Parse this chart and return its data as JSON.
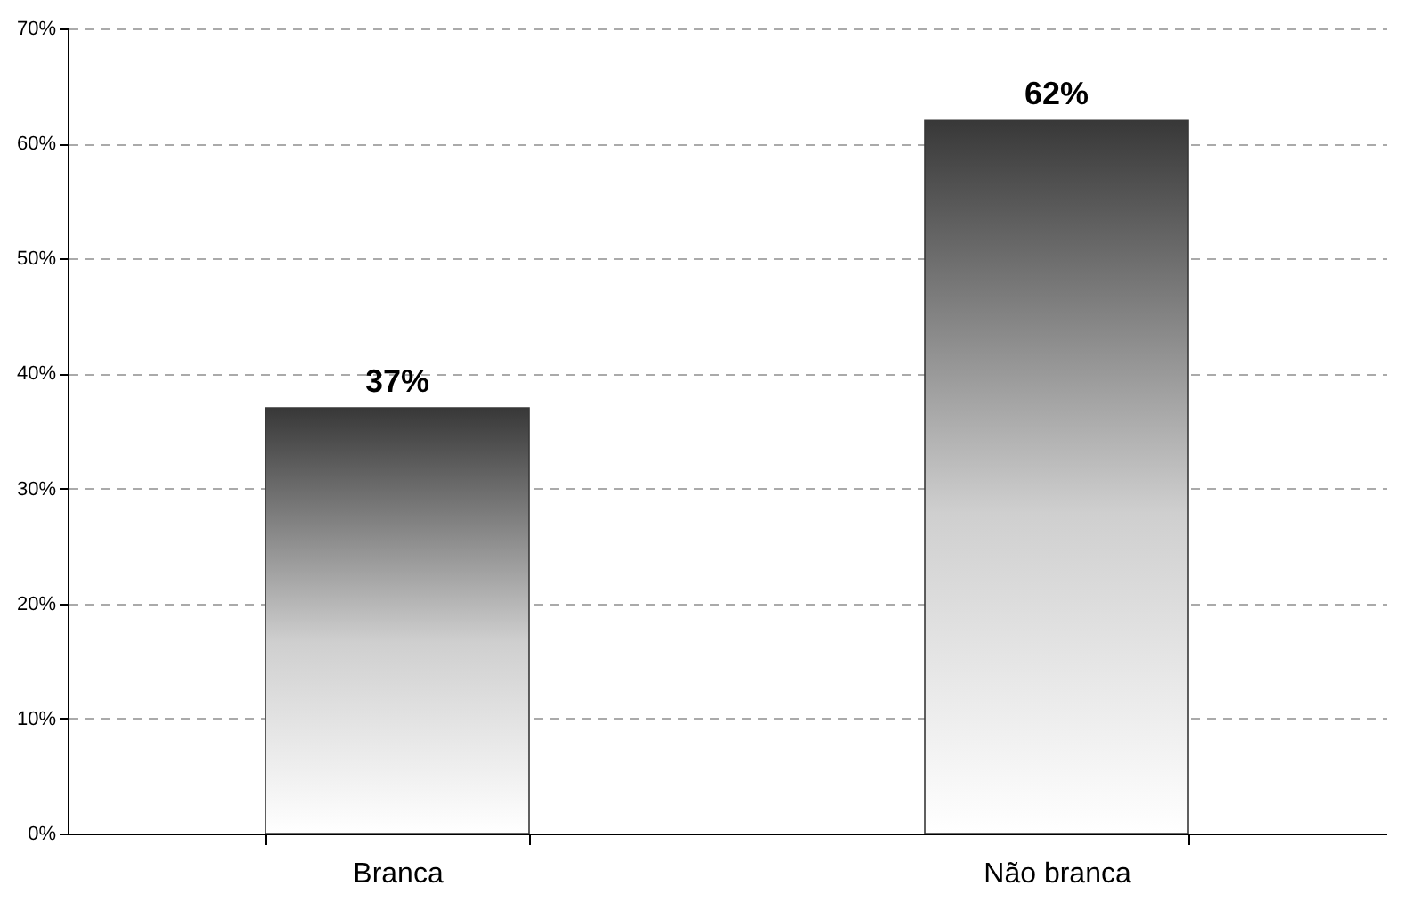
{
  "chart_data": {
    "type": "bar",
    "categories": [
      "Branca",
      "Não branca"
    ],
    "values": [
      37,
      62
    ],
    "value_labels": [
      "37%",
      "62%"
    ],
    "color": "#383838",
    "grid": "y",
    "ylim": [
      0,
      70
    ],
    "yticks": [
      {
        "value": 0,
        "label": "0%"
      },
      {
        "value": 10,
        "label": "10%"
      },
      {
        "value": 20,
        "label": "20%"
      },
      {
        "value": 30,
        "label": "30%"
      },
      {
        "value": 40,
        "label": "40%"
      },
      {
        "value": 50,
        "label": "50%"
      },
      {
        "value": 60,
        "label": "60%"
      },
      {
        "value": 70,
        "label": "70%"
      }
    ]
  }
}
